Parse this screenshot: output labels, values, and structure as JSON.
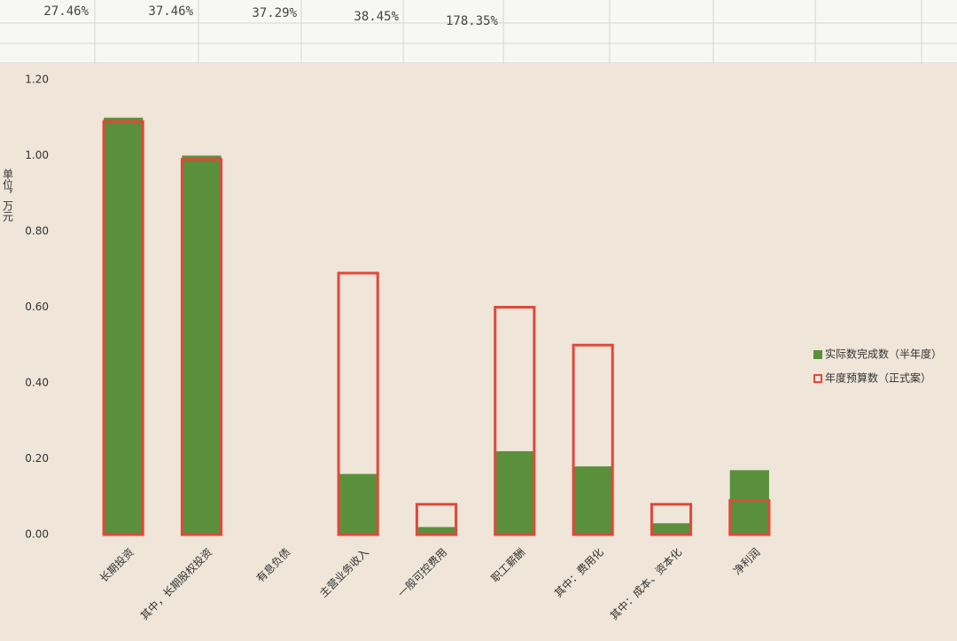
{
  "sheet": {
    "row": [
      "27.46%",
      "37.46%",
      "37.29%",
      "38.45%",
      "178.35%"
    ]
  },
  "chart_data": {
    "type": "bar",
    "y_label": "单位，万元",
    "categories": [
      "长期投资",
      "其中，长期股权投资",
      "有息负债",
      "主营业务收入",
      "一般可控费用",
      "职工薪酬",
      "其中：费用化",
      "其中：成本、资本化",
      "净利润"
    ],
    "series": [
      {
        "name": "实际数完成数（半年度）",
        "color": "#5a8f3c",
        "values": [
          1.1,
          1.0,
          null,
          0.16,
          0.02,
          0.22,
          0.18,
          0.03,
          0.17
        ]
      },
      {
        "name": "年度预算数（正式案）",
        "color": "#e0483a",
        "values": [
          1.09,
          0.99,
          null,
          0.69,
          0.08,
          0.6,
          0.5,
          0.08,
          0.09
        ]
      }
    ],
    "ylim": [
      0,
      1.2
    ],
    "yticks": [
      {
        "value": 0,
        "label": "0.00"
      },
      {
        "value": 0.2,
        "label": "0.20"
      },
      {
        "value": 0.4,
        "label": "0.40"
      },
      {
        "value": 0.6,
        "label": "0.60"
      },
      {
        "value": 0.8,
        "label": "0.80"
      },
      {
        "value": 1.0,
        "label": "1.00"
      },
      {
        "value": 1.2,
        "label": "1.20"
      }
    ],
    "legend": "right"
  }
}
